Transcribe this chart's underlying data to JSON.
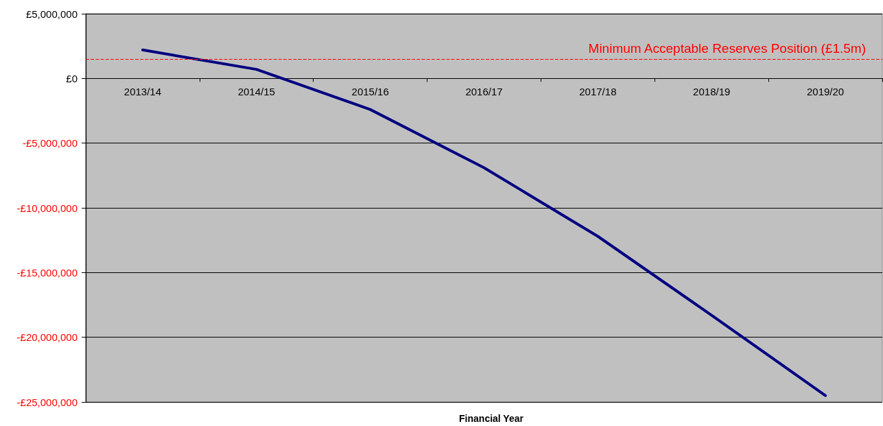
{
  "chart_data": {
    "type": "line",
    "xlabel": "Financial Year",
    "categories": [
      "2013/14",
      "2014/15",
      "2015/16",
      "2016/17",
      "2017/18",
      "2018/19",
      "2019/20"
    ],
    "series": [
      {
        "color": "#000080",
        "values": [
          2200000,
          700000,
          -2400000,
          -6900000,
          -12200000,
          -18300000,
          -24500000
        ]
      }
    ],
    "ylim": [
      -25000000,
      5000000
    ],
    "yticks": [
      {
        "value": -25000000,
        "label": "-£25,000,000"
      },
      {
        "value": -20000000,
        "label": "-£20,000,000"
      },
      {
        "value": -15000000,
        "label": "-£15,000,000"
      },
      {
        "value": -10000000,
        "label": "-£10,000,000"
      },
      {
        "value": -5000000,
        "label": "-£5,000,000"
      },
      {
        "value": 0,
        "label": "£0"
      },
      {
        "value": 5000000,
        "label": "£5,000,000"
      }
    ],
    "grid": "y",
    "marker": "none",
    "line_style": "solid",
    "ref_lines": [
      {
        "axis": "y",
        "value": 1500000,
        "label": "Minimum Acceptable Reserves Position (£1.5m)",
        "color": "#ff0000",
        "line_style": "dashed"
      }
    ]
  }
}
